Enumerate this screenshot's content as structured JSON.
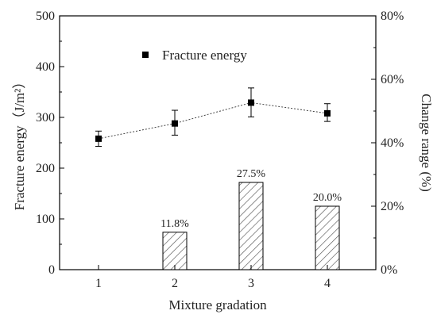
{
  "chart_data": {
    "type": "bar",
    "categories": [
      "1",
      "2",
      "3",
      "4"
    ],
    "xlabel": "Mixture gradation",
    "ylabel_left": "Fracture energy（J/m²）",
    "ylabel_right": "Change range (%)",
    "ylim_left": [
      0,
      500
    ],
    "ylim_right": [
      0,
      80
    ],
    "y_ticks_left": [
      "0",
      "100",
      "200",
      "300",
      "400",
      "500"
    ],
    "y_ticks_right": [
      "0%",
      "20%",
      "40%",
      "60%",
      "80%"
    ],
    "series": [
      {
        "name": "Fracture energy",
        "type": "line",
        "axis": "left",
        "values": [
          258,
          288,
          329,
          308
        ],
        "error_low": [
          243,
          265,
          301,
          292
        ],
        "error_high": [
          273,
          314,
          358,
          327
        ],
        "marker": "square",
        "color": "#000000"
      },
      {
        "type": "bar",
        "axis": "right",
        "values": [
          null,
          11.8,
          27.5,
          20.0
        ],
        "labels": [
          "",
          "11.8%",
          "27.5%",
          "20.0%"
        ],
        "fill": "hatched",
        "color": "#555555"
      }
    ],
    "legend": {
      "position": "top-left",
      "entries": [
        "Fracture energy"
      ]
    },
    "grid": false
  }
}
